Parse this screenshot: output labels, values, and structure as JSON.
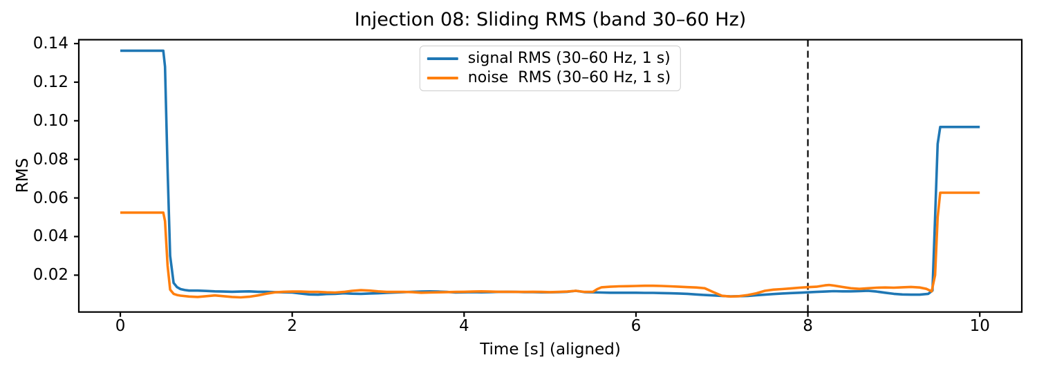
{
  "chart_data": {
    "type": "line",
    "title": "Injection 08: Sliding RMS (band 30–60 Hz)",
    "xlabel": "Time [s] (aligned)",
    "ylabel": "RMS",
    "xlim": [
      -0.483,
      10.489
    ],
    "ylim": [
      0.0009,
      0.142
    ],
    "x_ticks": [
      0,
      2,
      4,
      6,
      8,
      10
    ],
    "x_tick_labels": [
      "0",
      "2",
      "4",
      "6",
      "8",
      "10"
    ],
    "y_ticks": [
      0.02,
      0.04,
      0.06,
      0.08,
      0.1,
      0.12,
      0.14
    ],
    "y_tick_labels": [
      "0.02",
      "0.04",
      "0.06",
      "0.08",
      "0.10",
      "0.12",
      "0.14"
    ],
    "grid": false,
    "legend": {
      "position": "upper center"
    },
    "vline": {
      "x": 8,
      "style": "dashed",
      "color": "#000000"
    },
    "axis_color": "#000000",
    "series": [
      {
        "name": "signal RMS (30–60 Hz, 1 s)",
        "color": "#1f77b4",
        "points": [
          [
            0.0,
            0.1363
          ],
          [
            0.5,
            0.1363
          ],
          [
            0.52,
            0.128
          ],
          [
            0.55,
            0.075
          ],
          [
            0.58,
            0.03
          ],
          [
            0.62,
            0.016
          ],
          [
            0.66,
            0.0138
          ],
          [
            0.7,
            0.0128
          ],
          [
            0.75,
            0.0123
          ],
          [
            0.8,
            0.012
          ],
          [
            0.9,
            0.012
          ],
          [
            1.0,
            0.0118
          ],
          [
            1.1,
            0.0116
          ],
          [
            1.2,
            0.0115
          ],
          [
            1.3,
            0.0114
          ],
          [
            1.4,
            0.0115
          ],
          [
            1.5,
            0.0116
          ],
          [
            1.6,
            0.0114
          ],
          [
            1.7,
            0.0114
          ],
          [
            1.8,
            0.0112
          ],
          [
            1.9,
            0.0111
          ],
          [
            2.0,
            0.011
          ],
          [
            2.1,
            0.0105
          ],
          [
            2.2,
            0.01
          ],
          [
            2.3,
            0.0099
          ],
          [
            2.4,
            0.0102
          ],
          [
            2.5,
            0.0103
          ],
          [
            2.6,
            0.0106
          ],
          [
            2.7,
            0.0104
          ],
          [
            2.8,
            0.0103
          ],
          [
            2.9,
            0.0105
          ],
          [
            3.0,
            0.0106
          ],
          [
            3.1,
            0.0108
          ],
          [
            3.2,
            0.011
          ],
          [
            3.3,
            0.0112
          ],
          [
            3.4,
            0.0114
          ],
          [
            3.5,
            0.0115
          ],
          [
            3.6,
            0.0116
          ],
          [
            3.7,
            0.0115
          ],
          [
            3.8,
            0.0113
          ],
          [
            3.9,
            0.011
          ],
          [
            4.0,
            0.0111
          ],
          [
            4.1,
            0.0112
          ],
          [
            4.2,
            0.0111
          ],
          [
            4.3,
            0.0112
          ],
          [
            4.4,
            0.0113
          ],
          [
            4.5,
            0.0114
          ],
          [
            4.6,
            0.0113
          ],
          [
            4.7,
            0.0112
          ],
          [
            4.8,
            0.0112
          ],
          [
            4.9,
            0.0111
          ],
          [
            5.0,
            0.0111
          ],
          [
            5.1,
            0.0112
          ],
          [
            5.2,
            0.0114
          ],
          [
            5.3,
            0.0119
          ],
          [
            5.4,
            0.0112
          ],
          [
            5.5,
            0.0111
          ],
          [
            5.6,
            0.011
          ],
          [
            5.7,
            0.0109
          ],
          [
            5.8,
            0.0109
          ],
          [
            5.9,
            0.0109
          ],
          [
            6.0,
            0.0109
          ],
          [
            6.1,
            0.0108
          ],
          [
            6.2,
            0.0108
          ],
          [
            6.3,
            0.0107
          ],
          [
            6.4,
            0.0106
          ],
          [
            6.5,
            0.0105
          ],
          [
            6.6,
            0.0103
          ],
          [
            6.7,
            0.01
          ],
          [
            6.8,
            0.0097
          ],
          [
            6.9,
            0.0095
          ],
          [
            7.0,
            0.0092
          ],
          [
            7.1,
            0.009
          ],
          [
            7.2,
            0.0091
          ],
          [
            7.3,
            0.0092
          ],
          [
            7.4,
            0.0096
          ],
          [
            7.5,
            0.0099
          ],
          [
            7.6,
            0.0102
          ],
          [
            7.7,
            0.0105
          ],
          [
            7.8,
            0.0107
          ],
          [
            7.9,
            0.0109
          ],
          [
            8.0,
            0.0111
          ],
          [
            8.1,
            0.0113
          ],
          [
            8.2,
            0.0115
          ],
          [
            8.3,
            0.0117
          ],
          [
            8.4,
            0.0116
          ],
          [
            8.5,
            0.0116
          ],
          [
            8.6,
            0.0117
          ],
          [
            8.7,
            0.0119
          ],
          [
            8.8,
            0.0115
          ],
          [
            8.9,
            0.0109
          ],
          [
            9.0,
            0.0103
          ],
          [
            9.1,
            0.01
          ],
          [
            9.2,
            0.0099
          ],
          [
            9.3,
            0.0099
          ],
          [
            9.4,
            0.0103
          ],
          [
            9.45,
            0.012
          ],
          [
            9.48,
            0.05
          ],
          [
            9.51,
            0.088
          ],
          [
            9.54,
            0.0968
          ],
          [
            9.6,
            0.0968
          ],
          [
            10.0,
            0.0968
          ]
        ]
      },
      {
        "name": "noise  RMS (30–60 Hz, 1 s)",
        "color": "#ff7f0e",
        "points": [
          [
            0.0,
            0.0524
          ],
          [
            0.5,
            0.0524
          ],
          [
            0.52,
            0.048
          ],
          [
            0.55,
            0.025
          ],
          [
            0.58,
            0.0125
          ],
          [
            0.62,
            0.0103
          ],
          [
            0.66,
            0.0097
          ],
          [
            0.7,
            0.0094
          ],
          [
            0.8,
            0.0089
          ],
          [
            0.9,
            0.0087
          ],
          [
            1.0,
            0.0091
          ],
          [
            1.1,
            0.0095
          ],
          [
            1.2,
            0.0091
          ],
          [
            1.3,
            0.0087
          ],
          [
            1.4,
            0.0085
          ],
          [
            1.5,
            0.0088
          ],
          [
            1.6,
            0.0095
          ],
          [
            1.7,
            0.0104
          ],
          [
            1.8,
            0.0111
          ],
          [
            1.9,
            0.0114
          ],
          [
            2.0,
            0.0115
          ],
          [
            2.1,
            0.0115
          ],
          [
            2.2,
            0.0113
          ],
          [
            2.3,
            0.0113
          ],
          [
            2.4,
            0.0111
          ],
          [
            2.5,
            0.011
          ],
          [
            2.6,
            0.0113
          ],
          [
            2.7,
            0.0119
          ],
          [
            2.8,
            0.0122
          ],
          [
            2.9,
            0.012
          ],
          [
            3.0,
            0.0116
          ],
          [
            3.1,
            0.0113
          ],
          [
            3.2,
            0.0113
          ],
          [
            3.3,
            0.0113
          ],
          [
            3.4,
            0.0112
          ],
          [
            3.5,
            0.0109
          ],
          [
            3.6,
            0.011
          ],
          [
            3.7,
            0.0111
          ],
          [
            3.8,
            0.0112
          ],
          [
            3.9,
            0.0113
          ],
          [
            4.0,
            0.0114
          ],
          [
            4.1,
            0.0115
          ],
          [
            4.2,
            0.0116
          ],
          [
            4.3,
            0.0115
          ],
          [
            4.4,
            0.0114
          ],
          [
            4.5,
            0.0114
          ],
          [
            4.6,
            0.0113
          ],
          [
            4.7,
            0.0113
          ],
          [
            4.8,
            0.0114
          ],
          [
            4.9,
            0.0113
          ],
          [
            5.0,
            0.0112
          ],
          [
            5.1,
            0.0113
          ],
          [
            5.2,
            0.0115
          ],
          [
            5.3,
            0.0119
          ],
          [
            5.4,
            0.0113
          ],
          [
            5.5,
            0.0114
          ],
          [
            5.55,
            0.0128
          ],
          [
            5.6,
            0.0137
          ],
          [
            5.7,
            0.014
          ],
          [
            5.8,
            0.0142
          ],
          [
            5.9,
            0.0143
          ],
          [
            6.0,
            0.0144
          ],
          [
            6.1,
            0.0145
          ],
          [
            6.2,
            0.0145
          ],
          [
            6.3,
            0.0144
          ],
          [
            6.4,
            0.0142
          ],
          [
            6.5,
            0.014
          ],
          [
            6.6,
            0.0138
          ],
          [
            6.7,
            0.0136
          ],
          [
            6.8,
            0.0132
          ],
          [
            6.9,
            0.0112
          ],
          [
            7.0,
            0.0093
          ],
          [
            7.1,
            0.0089
          ],
          [
            7.2,
            0.0091
          ],
          [
            7.3,
            0.0097
          ],
          [
            7.4,
            0.0106
          ],
          [
            7.5,
            0.0119
          ],
          [
            7.6,
            0.0125
          ],
          [
            7.7,
            0.0128
          ],
          [
            7.8,
            0.0131
          ],
          [
            7.9,
            0.0135
          ],
          [
            8.0,
            0.0138
          ],
          [
            8.1,
            0.014
          ],
          [
            8.2,
            0.0147
          ],
          [
            8.25,
            0.0149
          ],
          [
            8.3,
            0.0146
          ],
          [
            8.4,
            0.0139
          ],
          [
            8.5,
            0.0132
          ],
          [
            8.6,
            0.0129
          ],
          [
            8.7,
            0.0132
          ],
          [
            8.8,
            0.0135
          ],
          [
            8.9,
            0.0136
          ],
          [
            9.0,
            0.0135
          ],
          [
            9.1,
            0.0137
          ],
          [
            9.2,
            0.0139
          ],
          [
            9.3,
            0.0136
          ],
          [
            9.38,
            0.0129
          ],
          [
            9.44,
            0.0116
          ],
          [
            9.48,
            0.02
          ],
          [
            9.51,
            0.05
          ],
          [
            9.54,
            0.0627
          ],
          [
            9.6,
            0.0627
          ],
          [
            10.0,
            0.0627
          ]
        ]
      }
    ]
  }
}
